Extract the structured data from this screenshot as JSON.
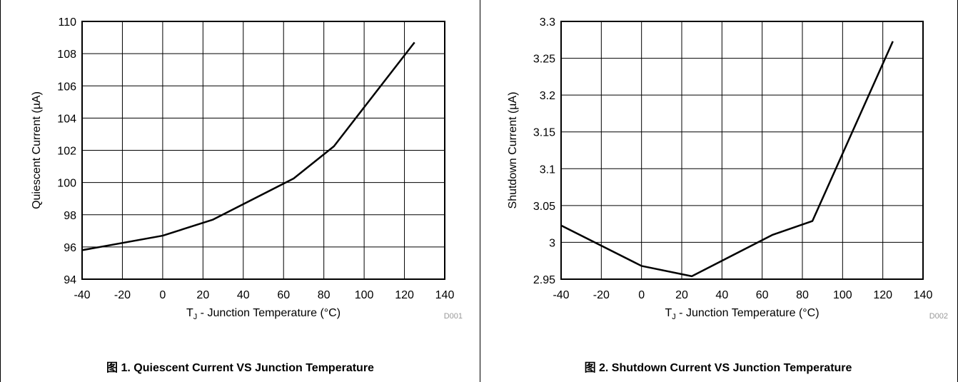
{
  "colors": {
    "line": "#000000",
    "grid": "#000000",
    "code": "#999999",
    "background": "#ffffff"
  },
  "chart_data": [
    {
      "type": "line",
      "caption": "图 1. Quiescent Current VS Junction Temperature",
      "xlabel_main": "T",
      "xlabel_sub": "J",
      "xlabel_rest": " - Junction Temperature (°C)",
      "ylabel": "Quiescent Current (µA)",
      "code": "D001",
      "xlim": [
        -40,
        140
      ],
      "ylim": [
        94,
        110
      ],
      "xticks": [
        -40,
        -20,
        0,
        20,
        40,
        60,
        80,
        100,
        120,
        140
      ],
      "xtick_labels": [
        "-40",
        "-20",
        "0",
        "20",
        "40",
        "60",
        "80",
        "100",
        "120",
        "140"
      ],
      "yticks": [
        94,
        96,
        98,
        100,
        102,
        104,
        106,
        108,
        110
      ],
      "ytick_labels": [
        "94",
        "96",
        "98",
        "100",
        "102",
        "104",
        "106",
        "108",
        "110"
      ],
      "grid": true,
      "series": [
        {
          "x": [
            -40,
            0,
            25,
            65,
            85,
            125
          ],
          "y": [
            95.8,
            96.7,
            97.7,
            100.25,
            102.25,
            108.7
          ]
        }
      ]
    },
    {
      "type": "line",
      "caption": "图 2. Shutdown Current VS Junction Temperature",
      "xlabel_main": "T",
      "xlabel_sub": "J",
      "xlabel_rest": " - Junction Temperature (°C)",
      "ylabel": "Shutdown Current (µA)",
      "code": "D002",
      "xlim": [
        -40,
        140
      ],
      "ylim": [
        2.95,
        3.3
      ],
      "xticks": [
        -40,
        -20,
        0,
        20,
        40,
        60,
        80,
        100,
        120,
        140
      ],
      "xtick_labels": [
        "-40",
        "-20",
        "0",
        "20",
        "40",
        "60",
        "80",
        "100",
        "120",
        "140"
      ],
      "yticks": [
        2.95,
        3.0,
        3.05,
        3.1,
        3.15,
        3.2,
        3.25,
        3.3
      ],
      "ytick_labels": [
        "2.95",
        "3",
        "3.05",
        "3.1",
        "3.15",
        "3.2",
        "3.25",
        "3.3"
      ],
      "grid": true,
      "series": [
        {
          "x": [
            -40,
            0,
            25,
            65,
            85,
            125
          ],
          "y": [
            3.023,
            2.968,
            2.954,
            3.01,
            3.029,
            3.273
          ]
        }
      ]
    }
  ]
}
